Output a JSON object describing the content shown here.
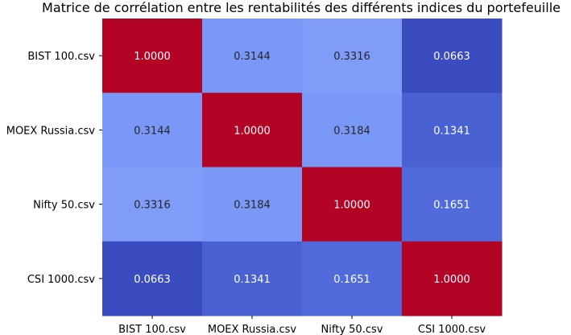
{
  "chart_data": {
    "type": "heatmap",
    "title": "Matrice de corrélation entre les rentabilités des différents indices du portefeuille",
    "xlabel": "",
    "ylabel": "",
    "x_categories": [
      "BIST 100.csv",
      "MOEX Russia.csv",
      "Nifty 50.csv",
      "CSI 1000.csv"
    ],
    "y_categories": [
      "BIST 100.csv",
      "MOEX Russia.csv",
      "Nifty 50.csv",
      "CSI 1000.csv"
    ],
    "values": [
      [
        1.0,
        0.3144,
        0.3316,
        0.0663
      ],
      [
        0.3144,
        1.0,
        0.3184,
        0.1341
      ],
      [
        0.3316,
        0.3184,
        1.0,
        0.1651
      ],
      [
        0.0663,
        0.1341,
        0.1651,
        1.0
      ]
    ],
    "value_labels": [
      [
        "1.0000",
        "0.3144",
        "0.3316",
        "0.0663"
      ],
      [
        "0.3144",
        "1.0000",
        "0.3184",
        "0.1341"
      ],
      [
        "0.3316",
        "0.3184",
        "1.0000",
        "0.1651"
      ],
      [
        "0.0663",
        "0.1341",
        "0.1651",
        "1.0000"
      ]
    ],
    "colormap": "coolwarm",
    "colors": {
      "high": "#b40426",
      "low": "#3b4cc0",
      "light_text": "#ffffff",
      "dark_text": "#262626",
      "axis": "#000000"
    },
    "colorbar": false,
    "grid": false
  }
}
